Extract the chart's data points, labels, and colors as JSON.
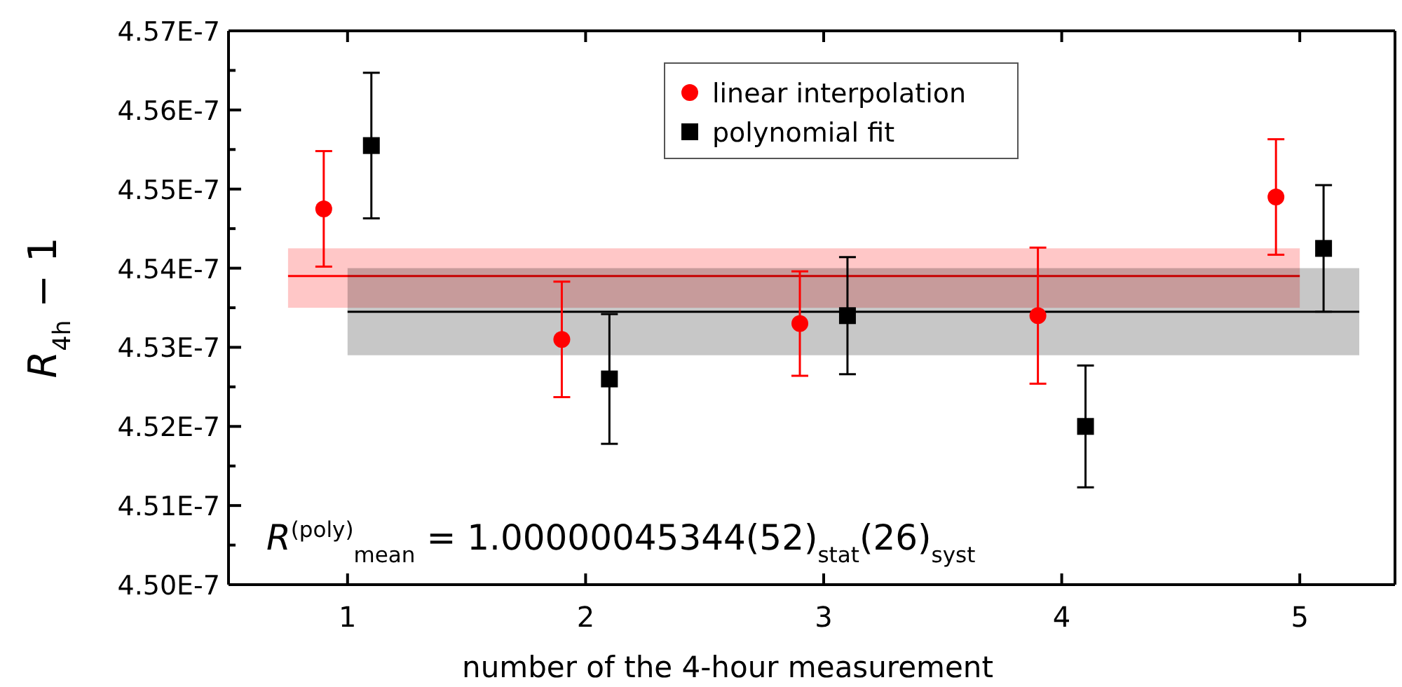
{
  "chart_data": {
    "type": "scatter",
    "xlabel": "number of the 4-hour measurement",
    "ylabel": "R$_{4h}$ − 1",
    "xlim": [
      0.5,
      5.4
    ],
    "xticks": [
      1,
      2,
      3,
      4,
      5
    ],
    "ylim": [
      4.5e-07,
      4.57e-07
    ],
    "yticks": [
      {
        "value": 4.5e-07,
        "label": "4.50E-7"
      },
      {
        "value": 4.505e-07,
        "label": null
      },
      {
        "value": 4.51e-07,
        "label": "4.51E-7"
      },
      {
        "value": 4.515e-07,
        "label": null
      },
      {
        "value": 4.52e-07,
        "label": "4.52E-7"
      },
      {
        "value": 4.525e-07,
        "label": null
      },
      {
        "value": 4.53e-07,
        "label": "4.53E-7"
      },
      {
        "value": 4.535e-07,
        "label": null
      },
      {
        "value": 4.54e-07,
        "label": "4.54E-7"
      },
      {
        "value": 4.545e-07,
        "label": null
      },
      {
        "value": 4.55e-07,
        "label": "4.55E-7"
      },
      {
        "value": 4.555e-07,
        "label": null
      },
      {
        "value": 4.56e-07,
        "label": "4.56E-7"
      },
      {
        "value": 4.565e-07,
        "label": null
      },
      {
        "value": 4.57e-07,
        "label": "4.57E-7"
      }
    ],
    "grid": false,
    "legend": "top",
    "series": [
      {
        "type": "line",
        "color": "#ff0000",
        "marker": "none",
        "x": [
          0.75,
          5.0
        ],
        "values": [
          4.539e-07,
          4.539e-07
        ],
        "lower": [
          4.535e-07,
          4.535e-07
        ],
        "upper": [
          4.5425e-07,
          4.5425e-07
        ]
      },
      {
        "type": "line",
        "color": "#000000",
        "marker": "none",
        "x": [
          1.0,
          5.25
        ],
        "values": [
          4.5345e-07,
          4.5345e-07
        ],
        "lower": [
          4.529e-07,
          4.529e-07
        ],
        "upper": [
          4.54e-07,
          4.54e-07
        ]
      },
      {
        "name": "linear interpolation",
        "color": "#ff0000",
        "marker": "circle",
        "x": [
          0.9,
          1.9,
          2.9,
          3.9,
          4.9
        ],
        "values": [
          4.5475e-07,
          4.531e-07,
          4.533e-07,
          4.534e-07,
          4.549e-07
        ],
        "errors": [
          7.3e-10,
          7.3e-10,
          6.6e-10,
          8.6e-10,
          7.3e-10
        ]
      },
      {
        "name": "polynomial fit",
        "color": "#000000",
        "marker": "square",
        "x": [
          1.1,
          2.1,
          3.1,
          4.1,
          5.1
        ],
        "values": [
          4.5555e-07,
          4.526e-07,
          4.534e-07,
          4.52e-07,
          4.5425e-07
        ],
        "errors": [
          9.2e-10,
          8.2e-10,
          7.4e-10,
          7.7e-10,
          8e-10
        ]
      }
    ],
    "annotations": [
      "R$^{(poly)}$$_{mean}$ = 1.00000045344(52)$_{stat}$(26)$_{syst}$"
    ]
  }
}
